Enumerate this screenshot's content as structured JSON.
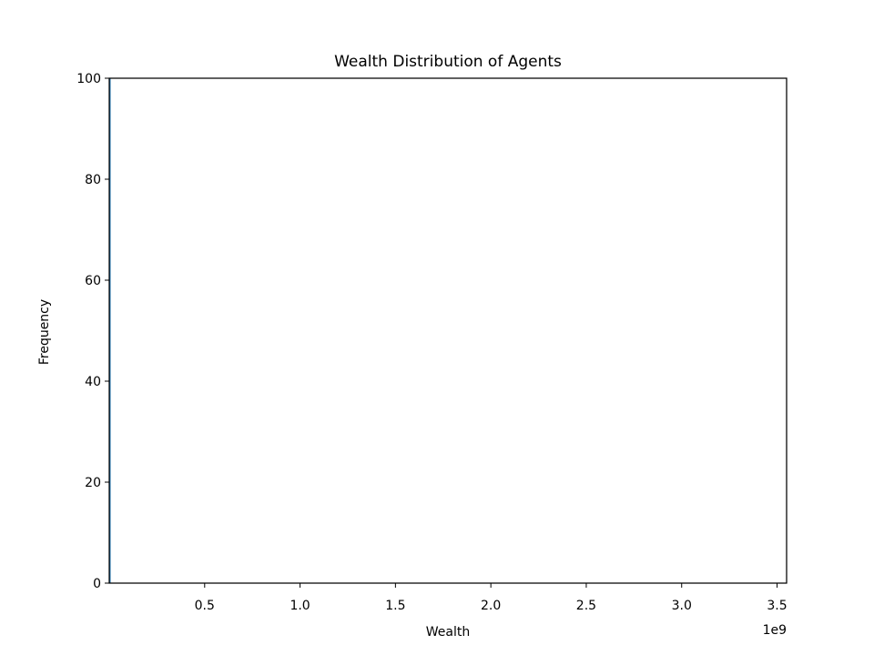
{
  "chart_data": {
    "type": "bar",
    "title": "Wealth Distribution of Agents",
    "xlabel": "Wealth",
    "ylabel": "Frequency",
    "x_offset_label": "1e9",
    "xlim": [
      0,
      3.55
    ],
    "ylim": [
      0,
      100
    ],
    "xticks": [
      0.5,
      1.0,
      1.5,
      2.0,
      2.5,
      3.0,
      3.5
    ],
    "xtick_labels": [
      "0.5",
      "1.0",
      "1.5",
      "2.0",
      "2.5",
      "3.0",
      "3.5"
    ],
    "yticks": [
      0,
      20,
      40,
      60,
      80,
      100
    ],
    "ytick_labels": [
      "0",
      "20",
      "40",
      "60",
      "80",
      "100"
    ],
    "grid": false,
    "bins": [
      {
        "x_start": 0,
        "x_end": 0.005,
        "count": 100
      }
    ],
    "bar_color": "#1f77b4"
  }
}
